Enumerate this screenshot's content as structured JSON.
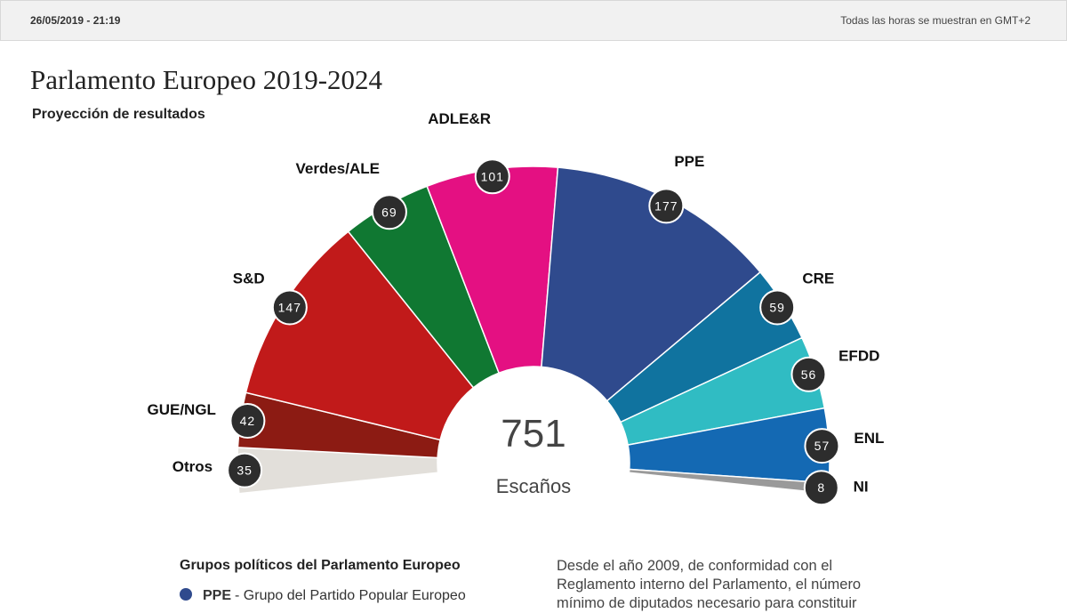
{
  "header": {
    "date": "26/05/2019 - 21:19",
    "timezone": "Todas las horas se muestran en GMT+2"
  },
  "chart_data": {
    "type": "parliament",
    "title": "Parlamento Europeo 2019-2024",
    "subtitle": "Proyección de resultados",
    "total": 751,
    "total_label": "Escaños",
    "categories": [
      "Otros",
      "GUE/NGL",
      "S&D",
      "Verdes/ALE",
      "ADLE&R",
      "PPE",
      "CRE",
      "EFDD",
      "ENL",
      "NI"
    ],
    "values": [
      35,
      42,
      147,
      69,
      101,
      177,
      59,
      56,
      57,
      8
    ],
    "colors": [
      "#e2dfda",
      "#8c1b13",
      "#c11a1a",
      "#107832",
      "#e41082",
      "#2f4a8d",
      "#10739f",
      "#30bcc3",
      "#1469b3",
      "#9a9a9a"
    ]
  },
  "legend": {
    "title": "Grupos políticos del Parlamento Europeo",
    "items": [
      {
        "abbr": "PPE",
        "name": "- Grupo del Partido Popular Europeo"
      }
    ]
  },
  "text": "Desde el año 2009, de conformidad con el Reglamento interno del Parlamento, el número mínimo de diputados necesario para constituir"
}
